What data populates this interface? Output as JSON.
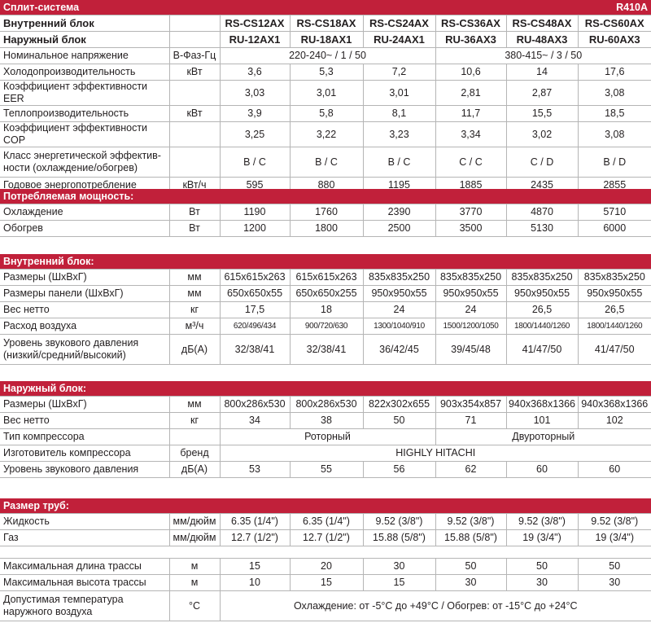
{
  "accent_color": "#c1203a",
  "sections": [
    {
      "title": "Сплит-система",
      "right": "R410A",
      "rows": [
        {
          "label": "Внутренний блок",
          "unit": "",
          "cells": [
            "RS-CS12AX",
            "RS-CS18AX",
            "RS-CS24AX",
            "RS-CS36AX",
            "RS-CS48AX",
            "RS-CS60AX"
          ],
          "bold": true
        },
        {
          "label": "Наружный блок",
          "unit": "",
          "cells": [
            "RU-12AX1",
            "RU-18AX1",
            "RU-24AX1",
            "RU-36AX3",
            "RU-48AX3",
            "RU-60AX3"
          ],
          "bold": true
        },
        {
          "label": "Номинальное  напряжение",
          "unit": "В-Фаз-Гц",
          "cells": [
            "220-240~ / 1 / 50",
            "380-415~ / 3 / 50"
          ]
        },
        {
          "label": "Холодопроизводительность",
          "unit": "кВт",
          "cells": [
            "3,6",
            "5,3",
            "7,2",
            "10,6",
            "14",
            "17,6"
          ]
        },
        {
          "label": "Коэффициент эффективности EER",
          "unit": "",
          "cells": [
            "3,03",
            "3,01",
            "3,01",
            "2,81",
            "2,87",
            "3,08"
          ]
        },
        {
          "label": "Теплопроизводительность",
          "unit": "кВт",
          "cells": [
            "3,9",
            "5,8",
            "8,1",
            "11,7",
            "15,5",
            "18,5"
          ]
        },
        {
          "label": "Коэффициент эффективности COP",
          "unit": "",
          "cells": [
            "3,25",
            "3,22",
            "3,23",
            "3,34",
            "3,02",
            "3,08"
          ]
        },
        {
          "label": "Класс энергетической эффектив-\nности (охлаждение/обогрев)",
          "unit": "",
          "cells": [
            "B / C",
            "B / C",
            "B / C",
            "C / C",
            "C / D",
            "B / D"
          ]
        },
        {
          "label": "Годовое энергопотребление",
          "unit": "кВт/ч",
          "cells": [
            "595",
            "880",
            "1195",
            "1885",
            "2435",
            "2855"
          ]
        }
      ]
    },
    {
      "title": "Потребляемая мощность:",
      "rows": [
        {
          "label": "Охлаждение",
          "unit": "Вт",
          "cells": [
            "1190",
            "1760",
            "2390",
            "3770",
            "4870",
            "5710"
          ]
        },
        {
          "label": "Обогрев",
          "unit": "Вт",
          "cells": [
            "1200",
            "1800",
            "2500",
            "3500",
            "5130",
            "6000"
          ]
        }
      ]
    },
    {
      "title": "Внутренний блок:",
      "rows": [
        {
          "label": "Размеры (ШхВхГ)",
          "unit": "мм",
          "cells": [
            "615x615x263",
            "615x615x263",
            "835x835x250",
            "835x835x250",
            "835x835x250",
            "835x835x250"
          ]
        },
        {
          "label": "Размеры панели (ШхВхГ)",
          "unit": "мм",
          "cells": [
            "650x650x55",
            "650x650x255",
            "950x950x55",
            "950x950x55",
            "950x950x55",
            "950x950x55"
          ]
        },
        {
          "label": "Вес нетто",
          "unit": "кг",
          "cells": [
            "17,5",
            "18",
            "24",
            "24",
            "26,5",
            "26,5"
          ]
        },
        {
          "label": "Расход   воздуха",
          "unit": "м³/ч",
          "cells": [
            "620/496/434",
            "900/720/630",
            "1300/1040/910",
            "1500/1200/1050",
            "1800/1440/1260",
            "1800/1440/1260"
          ],
          "small": true
        },
        {
          "label": "Уровень звукового давления\n(низкий/средний/высокий)",
          "unit": "дБ(А)",
          "cells": [
            "32/38/41",
            "32/38/41",
            "36/42/45",
            "39/45/48",
            "41/47/50",
            "41/47/50"
          ]
        }
      ]
    },
    {
      "title": "Наружный блок:",
      "rows": [
        {
          "label": "Размеры (ШхВхГ)",
          "unit": "мм",
          "cells": [
            "800x286x530",
            "800x286x530",
            "822x302x655",
            "903x354x857",
            "940x368x1366",
            "940x368x1366"
          ]
        },
        {
          "label": "Вес нетто",
          "unit": "кг",
          "cells": [
            "34",
            "38",
            "50",
            "71",
            "101",
            "102"
          ]
        },
        {
          "label": "Тип компрессора",
          "unit": "",
          "cells": [
            "Роторный",
            "Двуроторный"
          ]
        },
        {
          "label": "Изготовитель компрессора",
          "unit": "бренд",
          "cells": [
            "HIGHLY HITACHI"
          ]
        },
        {
          "label": "Уровень звукового давления",
          "unit": "дБ(А)",
          "cells": [
            "53",
            "55",
            "56",
            "62",
            "60",
            "60"
          ]
        }
      ]
    },
    {
      "title": "Размер труб:",
      "rows": [
        {
          "label": "Жидкость",
          "unit": "мм/дюйм",
          "cells": [
            "6.35 (1/4\")",
            "6.35 (1/4\")",
            "9.52 (3/8\")",
            "9.52 (3/8\")",
            "9.52 (3/8\")",
            "9.52 (3/8\")"
          ]
        },
        {
          "label": "Газ",
          "unit": "мм/дюйм",
          "cells": [
            "12.7 (1/2\")",
            "12.7 (1/2\")",
            "15.88 (5/8\")",
            "15.88 (5/8\")",
            "19 (3/4\")",
            "19 (3/4\")"
          ]
        }
      ]
    },
    {
      "title": "",
      "rows": [
        {
          "label": "Максимальная длина трассы",
          "unit": "м",
          "cells": [
            "15",
            "20",
            "30",
            "50",
            "50",
            "50"
          ]
        },
        {
          "label": "Максимальная высота трассы",
          "unit": "м",
          "cells": [
            "10",
            "15",
            "15",
            "30",
            "30",
            "30"
          ]
        },
        {
          "label": "Допустимая температура\nнаружного воздуха",
          "unit": "°C",
          "cells": [
            "Охлаждение: от -5°C до +49°C / Обогрев: от -15°C до +24°C"
          ]
        }
      ]
    }
  ]
}
